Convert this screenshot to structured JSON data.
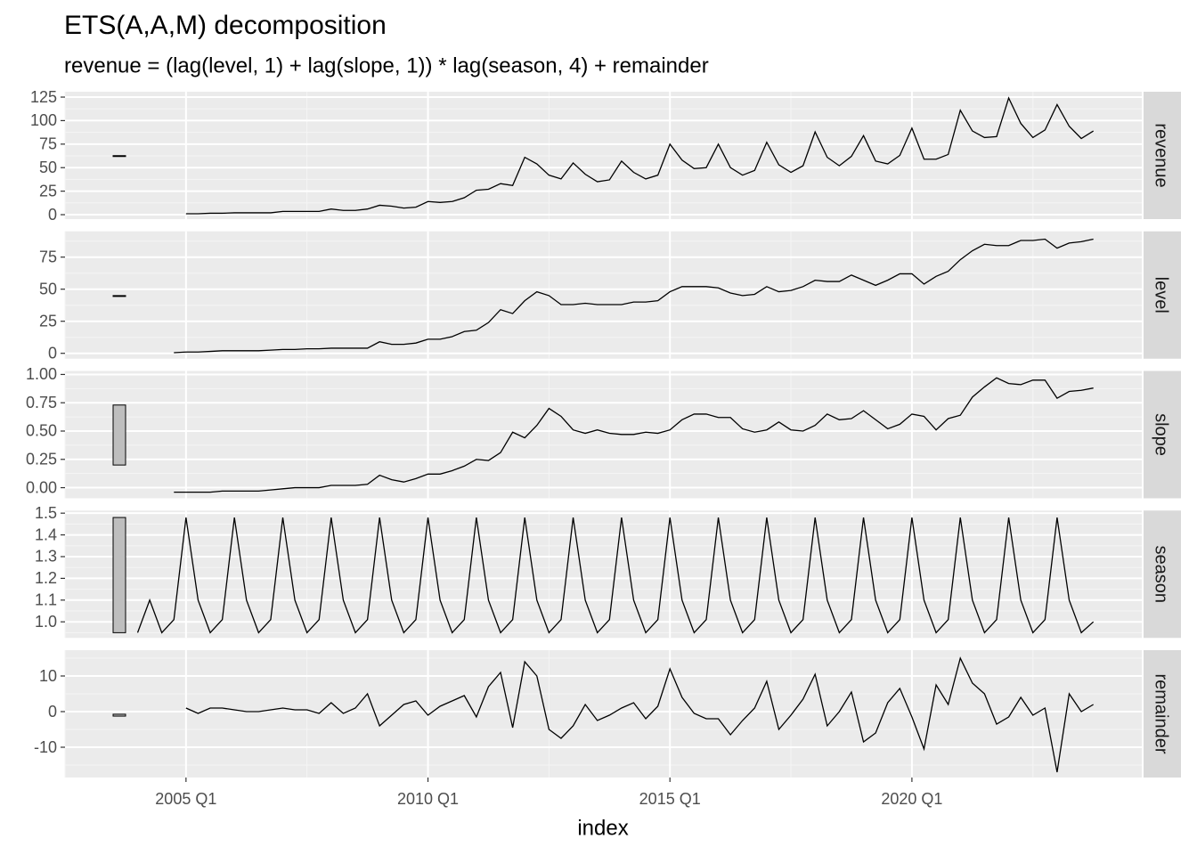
{
  "chart_data": {
    "type": "line",
    "title": "ETS(A,A,M) decomposition",
    "subtitle": "revenue = (lag(level, 1) + lag(slope, 1)) * lag(season, 4) + remainder",
    "xlabel": "index",
    "color": "#000000",
    "grid": true,
    "x": [
      "2004 Q1",
      "2004 Q2",
      "2004 Q3",
      "2004 Q4",
      "2005 Q1",
      "2005 Q2",
      "2005 Q3",
      "2005 Q4",
      "2006 Q1",
      "2006 Q2",
      "2006 Q3",
      "2006 Q4",
      "2007 Q1",
      "2007 Q2",
      "2007 Q3",
      "2007 Q4",
      "2008 Q1",
      "2008 Q2",
      "2008 Q3",
      "2008 Q4",
      "2009 Q1",
      "2009 Q2",
      "2009 Q3",
      "2009 Q4",
      "2010 Q1",
      "2010 Q2",
      "2010 Q3",
      "2010 Q4",
      "2011 Q1",
      "2011 Q2",
      "2011 Q3",
      "2011 Q4",
      "2012 Q1",
      "2012 Q2",
      "2012 Q3",
      "2012 Q4",
      "2013 Q1",
      "2013 Q2",
      "2013 Q3",
      "2013 Q4",
      "2014 Q1",
      "2014 Q2",
      "2014 Q3",
      "2014 Q4",
      "2015 Q1",
      "2015 Q2",
      "2015 Q3",
      "2015 Q4",
      "2016 Q1",
      "2016 Q2",
      "2016 Q3",
      "2016 Q4",
      "2017 Q1",
      "2017 Q2",
      "2017 Q3",
      "2017 Q4",
      "2018 Q1",
      "2018 Q2",
      "2018 Q3",
      "2018 Q4",
      "2019 Q1",
      "2019 Q2",
      "2019 Q3",
      "2019 Q4",
      "2020 Q1",
      "2020 Q2",
      "2020 Q3",
      "2020 Q4",
      "2021 Q1",
      "2021 Q2",
      "2021 Q3",
      "2021 Q4",
      "2022 Q1",
      "2022 Q2",
      "2022 Q3",
      "2022 Q4",
      "2023 Q1",
      "2023 Q2",
      "2023 Q3",
      "2023 Q4"
    ],
    "xlim": [
      "2002 Q3",
      "2024 Q4"
    ],
    "xticks": [
      "2005 Q1",
      "2010 Q1",
      "2015 Q1",
      "2020 Q1"
    ],
    "panels": [
      {
        "name": "revenue",
        "ylim": [
          -4.7,
          130.7
        ],
        "yticks": [
          0,
          25,
          50,
          75,
          100,
          125
        ],
        "values": [
          null,
          null,
          null,
          null,
          1,
          1,
          1.5,
          1.5,
          2,
          2,
          2,
          2,
          3.5,
          3.5,
          3.5,
          3.5,
          6,
          4.5,
          4.5,
          6,
          10,
          9,
          7,
          8,
          14,
          13,
          14,
          18,
          26,
          27,
          33,
          31,
          61,
          54,
          42,
          38,
          55,
          43,
          35,
          37,
          57,
          45,
          38,
          42,
          75,
          58,
          49,
          50,
          75,
          50,
          42,
          47,
          77,
          53,
          45,
          52,
          88,
          61,
          52,
          62,
          84,
          57,
          54,
          63,
          92,
          59,
          59,
          64,
          111,
          89,
          82,
          83,
          124,
          97,
          82,
          90,
          117,
          94,
          81,
          89
        ]
      },
      {
        "name": "level",
        "ylim": [
          -4.2,
          95.1
        ],
        "yticks": [
          0,
          25,
          50,
          75
        ],
        "values": [
          null,
          null,
          null,
          0.5,
          1,
          1,
          1.5,
          2,
          2,
          2,
          2,
          2.5,
          3,
          3,
          3.5,
          3.5,
          4,
          4,
          4,
          4,
          9,
          7,
          7,
          8,
          11,
          11,
          13,
          17,
          18,
          24,
          34,
          31,
          41,
          48,
          45,
          38,
          38,
          39,
          38,
          38,
          38,
          40,
          40,
          41,
          48,
          52,
          52,
          52,
          51,
          47,
          45,
          46,
          52,
          48,
          49,
          52,
          57,
          56,
          56,
          61,
          57,
          53,
          57,
          62,
          62,
          54,
          60,
          64,
          73,
          80,
          85,
          84,
          84,
          88,
          88,
          89,
          82,
          86,
          87,
          89
        ]
      },
      {
        "name": "slope",
        "ylim": [
          -0.094,
          1.031
        ],
        "yticks": [
          {
            "value": 0,
            "label": "0.00"
          },
          {
            "value": 0.25,
            "label": "0.25"
          },
          {
            "value": 0.5,
            "label": "0.50"
          },
          {
            "value": 0.75,
            "label": "0.75"
          },
          {
            "value": 1,
            "label": "1.00"
          }
        ],
        "values": [
          null,
          null,
          null,
          -0.04,
          -0.04,
          -0.04,
          -0.04,
          -0.03,
          -0.03,
          -0.03,
          -0.03,
          -0.02,
          -0.01,
          0,
          0,
          0,
          0.02,
          0.02,
          0.02,
          0.03,
          0.11,
          0.07,
          0.05,
          0.08,
          0.12,
          0.12,
          0.15,
          0.19,
          0.25,
          0.24,
          0.31,
          0.49,
          0.44,
          0.55,
          0.7,
          0.63,
          0.51,
          0.48,
          0.51,
          0.48,
          0.47,
          0.47,
          0.49,
          0.48,
          0.51,
          0.6,
          0.65,
          0.65,
          0.62,
          0.62,
          0.52,
          0.49,
          0.51,
          0.58,
          0.51,
          0.5,
          0.55,
          0.65,
          0.6,
          0.61,
          0.68,
          0.6,
          0.52,
          0.56,
          0.65,
          0.63,
          0.51,
          0.61,
          0.64,
          0.8,
          0.89,
          0.97,
          0.92,
          0.91,
          0.95,
          0.95,
          0.79,
          0.85,
          0.86,
          0.88
        ]
      },
      {
        "name": "season",
        "ylim": [
          0.926,
          1.512
        ],
        "yticks": [
          {
            "value": 1,
            "label": "1.0"
          },
          1.1,
          1.2,
          1.3,
          1.4,
          1.5
        ],
        "values": [
          0.95,
          1.1,
          0.95,
          1.01,
          1.48,
          1.1,
          0.95,
          1.01,
          1.48,
          1.1,
          0.95,
          1.01,
          1.48,
          1.1,
          0.95,
          1.01,
          1.48,
          1.1,
          0.95,
          1.01,
          1.48,
          1.1,
          0.95,
          1.01,
          1.48,
          1.1,
          0.95,
          1.01,
          1.48,
          1.1,
          0.95,
          1.01,
          1.48,
          1.1,
          0.95,
          1.01,
          1.48,
          1.1,
          0.95,
          1.01,
          1.48,
          1.1,
          0.95,
          1.01,
          1.48,
          1.1,
          0.95,
          1.01,
          1.48,
          1.1,
          0.95,
          1.01,
          1.48,
          1.1,
          0.95,
          1.01,
          1.48,
          1.1,
          0.95,
          1.01,
          1.48,
          1.1,
          0.95,
          1.01,
          1.48,
          1.1,
          0.95,
          1.01,
          1.48,
          1.1,
          0.95,
          1.01,
          1.48,
          1.1,
          0.95,
          1.01,
          1.48,
          1.1,
          0.95,
          1
        ]
      },
      {
        "name": "remainder",
        "ylim": [
          -18.5,
          17.25
        ],
        "yticks": [
          -10,
          0,
          10
        ],
        "values": [
          null,
          null,
          null,
          null,
          1,
          -0.5,
          1,
          1,
          0.5,
          0,
          0,
          0.5,
          1,
          0.5,
          0.5,
          -0.5,
          2.5,
          -0.5,
          1,
          5,
          -4,
          -1,
          2,
          3,
          -1,
          1.5,
          3,
          4.5,
          -1.5,
          7,
          11,
          -4.5,
          14,
          10,
          -5,
          -7.5,
          -4,
          2,
          -2.5,
          -1,
          1,
          2.5,
          -2,
          1.5,
          12,
          4,
          -0.5,
          -2,
          -2,
          -6.5,
          -2.5,
          1,
          8.5,
          -5,
          -1,
          3.5,
          10.5,
          -4,
          0,
          5.5,
          -8.5,
          -6,
          2.5,
          6.5,
          -1.5,
          -10.5,
          7.5,
          2,
          15,
          8,
          5,
          -3.5,
          -1.5,
          4,
          -1,
          1,
          -17,
          5,
          0,
          2
        ]
      }
    ]
  }
}
